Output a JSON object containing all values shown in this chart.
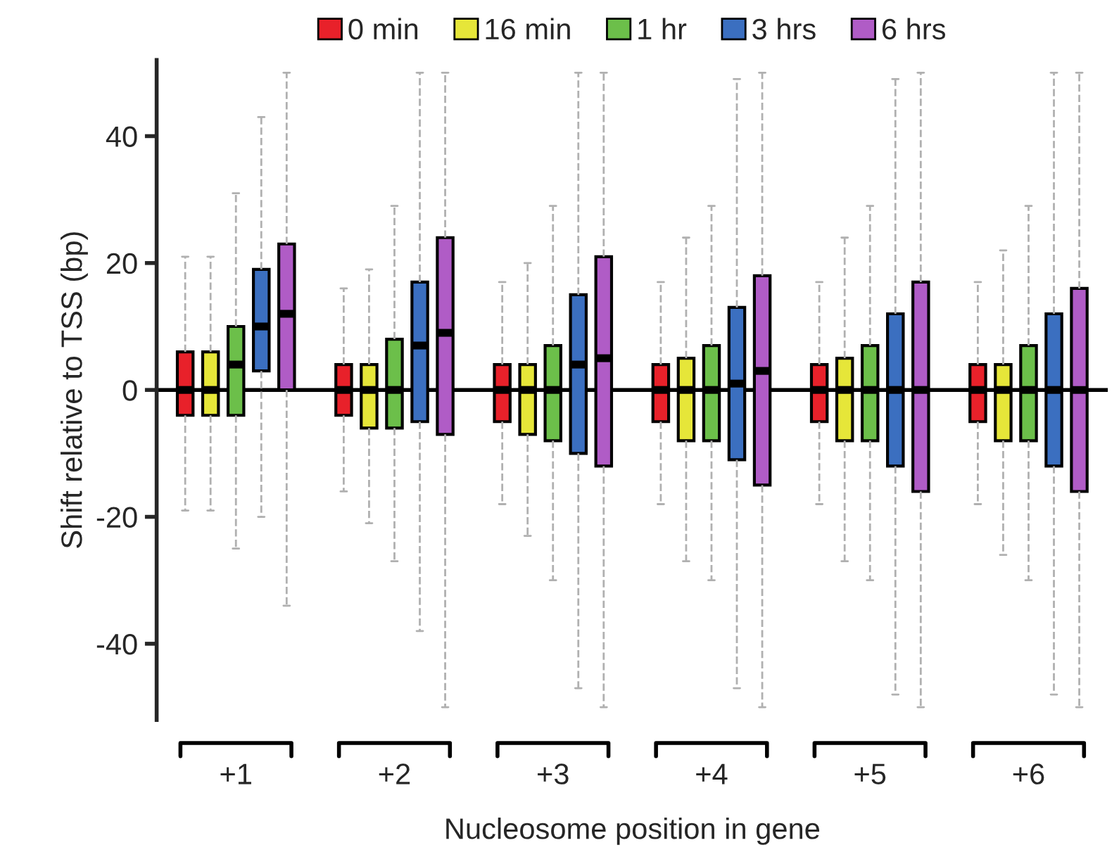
{
  "chart_data": {
    "type": "box",
    "xlabel": "Nucleosome position in gene",
    "ylabel": "Shift relative to TSS (bp)",
    "categories": [
      "+1",
      "+2",
      "+3",
      "+4",
      "+5",
      "+6"
    ],
    "ylim": [
      -52,
      52
    ],
    "yticks": [
      -40,
      -20,
      0,
      20,
      40
    ],
    "grid": false,
    "legend": "top",
    "ref_lines": [
      {
        "axis": "y",
        "value": 0,
        "color": "#000000",
        "line_style": "solid"
      }
    ],
    "series": [
      {
        "name": "0 min",
        "color": "#e8212a",
        "boxes": [
          {
            "low": -19,
            "q1": -4,
            "median": 0,
            "q3": 6,
            "high": 21
          },
          {
            "low": -16,
            "q1": -4,
            "median": 0,
            "q3": 4,
            "high": 16
          },
          {
            "low": -18,
            "q1": -5,
            "median": 0,
            "q3": 4,
            "high": 17
          },
          {
            "low": -18,
            "q1": -5,
            "median": 0,
            "q3": 4,
            "high": 17
          },
          {
            "low": -18,
            "q1": -5,
            "median": 0,
            "q3": 4,
            "high": 17
          },
          {
            "low": -18,
            "q1": -5,
            "median": 0,
            "q3": 4,
            "high": 17
          }
        ]
      },
      {
        "name": "16 min",
        "color": "#e6e639",
        "boxes": [
          {
            "low": -19,
            "q1": -4,
            "median": 0,
            "q3": 6,
            "high": 21
          },
          {
            "low": -21,
            "q1": -6,
            "median": 0,
            "q3": 4,
            "high": 19
          },
          {
            "low": -23,
            "q1": -7,
            "median": 0,
            "q3": 4,
            "high": 20
          },
          {
            "low": -27,
            "q1": -8,
            "median": 0,
            "q3": 5,
            "high": 24
          },
          {
            "low": -27,
            "q1": -8,
            "median": 0,
            "q3": 5,
            "high": 24
          },
          {
            "low": -26,
            "q1": -8,
            "median": 0,
            "q3": 4,
            "high": 22
          }
        ]
      },
      {
        "name": "1 hr",
        "color": "#6cbf4a",
        "boxes": [
          {
            "low": -25,
            "q1": -4,
            "median": 4,
            "q3": 10,
            "high": 31
          },
          {
            "low": -27,
            "q1": -6,
            "median": 0,
            "q3": 8,
            "high": 29
          },
          {
            "low": -30,
            "q1": -8,
            "median": 0,
            "q3": 7,
            "high": 29
          },
          {
            "low": -30,
            "q1": -8,
            "median": 0,
            "q3": 7,
            "high": 29
          },
          {
            "low": -30,
            "q1": -8,
            "median": 0,
            "q3": 7,
            "high": 29
          },
          {
            "low": -30,
            "q1": -8,
            "median": 0,
            "q3": 7,
            "high": 29
          }
        ]
      },
      {
        "name": "3 hrs",
        "color": "#3b6fc0",
        "boxes": [
          {
            "low": -20,
            "q1": 3,
            "median": 10,
            "q3": 19,
            "high": 43
          },
          {
            "low": -38,
            "q1": -5,
            "median": 7,
            "q3": 17,
            "high": 50
          },
          {
            "low": -47,
            "q1": -10,
            "median": 4,
            "q3": 15,
            "high": 50
          },
          {
            "low": -47,
            "q1": -11,
            "median": 1,
            "q3": 13,
            "high": 49
          },
          {
            "low": -48,
            "q1": -12,
            "median": 0,
            "q3": 12,
            "high": 49
          },
          {
            "low": -48,
            "q1": -12,
            "median": 0,
            "q3": 12,
            "high": 50
          }
        ]
      },
      {
        "name": "6 hrs",
        "color": "#b05cc6",
        "boxes": [
          {
            "low": -34,
            "q1": 0,
            "median": 12,
            "q3": 23,
            "high": 50
          },
          {
            "low": -50,
            "q1": -7,
            "median": 9,
            "q3": 24,
            "high": 50
          },
          {
            "low": -50,
            "q1": -12,
            "median": 5,
            "q3": 21,
            "high": 50
          },
          {
            "low": -50,
            "q1": -15,
            "median": 3,
            "q3": 18,
            "high": 50
          },
          {
            "low": -50,
            "q1": -16,
            "median": 0,
            "q3": 17,
            "high": 50
          },
          {
            "low": -50,
            "q1": -16,
            "median": 0,
            "q3": 16,
            "high": 50
          }
        ]
      }
    ]
  }
}
